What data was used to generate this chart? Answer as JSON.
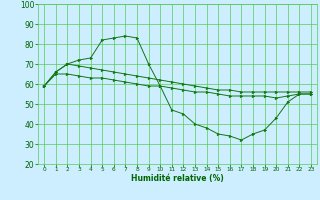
{
  "background_color": "#cceeff",
  "grid_color": "#55cc55",
  "line_color": "#117711",
  "xlabel": "Humidité relative (%)",
  "xlabel_color": "#006600",
  "tick_color": "#006600",
  "xlim": [
    -0.5,
    23.5
  ],
  "ylim": [
    20,
    100
  ],
  "yticks": [
    20,
    30,
    40,
    50,
    60,
    70,
    80,
    90,
    100
  ],
  "xticks": [
    0,
    1,
    2,
    3,
    4,
    5,
    6,
    7,
    8,
    9,
    10,
    11,
    12,
    13,
    14,
    15,
    16,
    17,
    18,
    19,
    20,
    21,
    22,
    23
  ],
  "series": [
    {
      "x": [
        0,
        1,
        2,
        3,
        4,
        5,
        6,
        7,
        8,
        9,
        10,
        11,
        12,
        13,
        14,
        15,
        16,
        17,
        18,
        19,
        20,
        21,
        22,
        23
      ],
      "y": [
        59,
        66,
        70,
        72,
        73,
        82,
        83,
        84,
        83,
        70,
        59,
        47,
        45,
        40,
        38,
        35,
        34,
        32,
        35,
        37,
        43,
        51,
        55,
        55
      ]
    },
    {
      "x": [
        0,
        1,
        2,
        3,
        4,
        5,
        6,
        7,
        8,
        9,
        10,
        11,
        12,
        13,
        14,
        15,
        16,
        17,
        18,
        19,
        20,
        21,
        22,
        23
      ],
      "y": [
        59,
        66,
        70,
        69,
        68,
        67,
        66,
        65,
        64,
        63,
        62,
        61,
        60,
        59,
        58,
        57,
        57,
        56,
        56,
        56,
        56,
        56,
        56,
        56
      ]
    },
    {
      "x": [
        0,
        1,
        2,
        3,
        4,
        5,
        6,
        7,
        8,
        9,
        10,
        11,
        12,
        13,
        14,
        15,
        16,
        17,
        18,
        19,
        20,
        21,
        22,
        23
      ],
      "y": [
        59,
        65,
        65,
        64,
        63,
        63,
        62,
        61,
        60,
        59,
        59,
        58,
        57,
        56,
        56,
        55,
        54,
        54,
        54,
        54,
        53,
        54,
        55,
        55
      ]
    }
  ]
}
